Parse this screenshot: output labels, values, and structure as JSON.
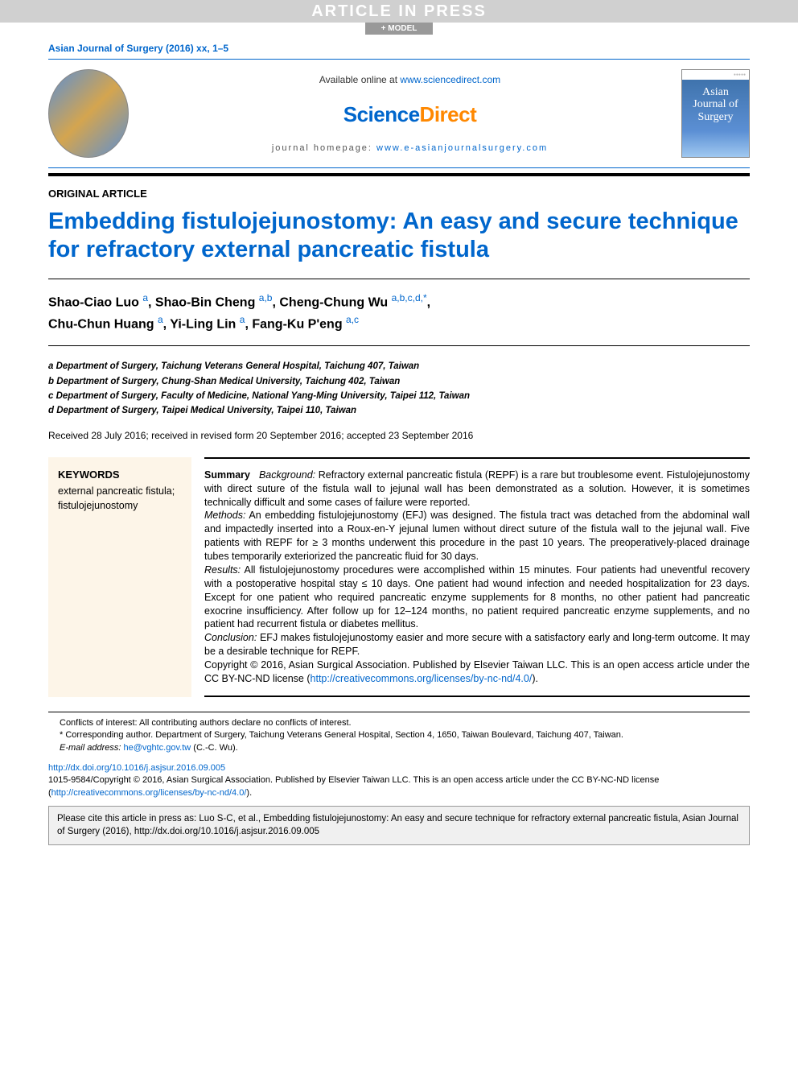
{
  "header_band": "ARTICLE IN PRESS",
  "model_tag": "+ MODEL",
  "journal_ref": "Asian Journal of Surgery (2016) xx, 1–5",
  "masthead": {
    "available_prefix": "Available online at ",
    "available_link": "www.sciencedirect.com",
    "brand_sci": "Science",
    "brand_direct": "Direct",
    "homepage_prefix": "journal homepage: ",
    "homepage_link": "www.e-asianjournalsurgery.com",
    "cover_line1": "Asian",
    "cover_line2": "Journal of",
    "cover_line3": "Surgery",
    "cover_badges": "●●●●●"
  },
  "section_label": "ORIGINAL ARTICLE",
  "title": "Embedding fistulojejunostomy: An easy and secure technique for refractory external pancreatic fistula",
  "authors": {
    "a1_name": "Shao-Ciao Luo ",
    "a1_sup": "a",
    "a2_name": "Shao-Bin Cheng ",
    "a2_sup": "a,b",
    "a3_name": "Cheng-Chung Wu ",
    "a3_sup": "a,b,c,d,",
    "a3_star": "*",
    "a4_name": "Chu-Chun Huang ",
    "a4_sup": "a",
    "a5_name": "Yi-Ling Lin ",
    "a5_sup": "a",
    "a6_name": "Fang-Ku P'eng ",
    "a6_sup": "a,c"
  },
  "affiliations": {
    "a": "a Department of Surgery, Taichung Veterans General Hospital, Taichung 407, Taiwan",
    "b": "b Department of Surgery, Chung-Shan Medical University, Taichung 402, Taiwan",
    "c": "c Department of Surgery, Faculty of Medicine, National Yang-Ming University, Taipei 112, Taiwan",
    "d": "d Department of Surgery, Taipei Medical University, Taipei 110, Taiwan"
  },
  "dates": "Received 28 July 2016; received in revised form 20 September 2016; accepted 23 September 2016",
  "keywords": {
    "head": "KEYWORDS",
    "body": "external pancreatic fistula; fistulojejunostomy"
  },
  "summary": {
    "label": "Summary",
    "bg_head": "Background:",
    "bg_body": " Refractory external pancreatic fistula (REPF) is a rare but troublesome event. Fistulojejunostomy with direct suture of the fistula wall to jejunal wall has been demonstrated as a solution. However, it is sometimes technically difficult and some cases of failure were reported.",
    "me_head": "Methods:",
    "me_body": " An embedding fistulojejunostomy (EFJ) was designed. The fistula tract was detached from the abdominal wall and impactedly inserted into a Roux-en-Y jejunal lumen without direct suture of the fistula wall to the jejunal wall. Five patients with REPF for ≥ 3 months underwent this procedure in the past 10 years. The preoperatively-placed drainage tubes temporarily exteriorized the pancreatic fluid for 30 days.",
    "re_head": "Results:",
    "re_body": " All fistulojejunostomy procedures were accomplished within 15 minutes. Four patients had uneventful recovery with a postoperative hospital stay ≤ 10 days. One patient had wound infection and needed hospitalization for 23 days. Except for one patient who required pancreatic enzyme supplements for 8 months, no other patient had pancreatic exocrine insufficiency. After follow up for 12–124 months, no patient required pancreatic enzyme supplements, and no patient had recurrent fistula or diabetes mellitus.",
    "co_head": "Conclusion:",
    "co_body": " EFJ makes fistulojejunostomy easier and more secure with a satisfactory early and long-term outcome. It may be a desirable technique for REPF.",
    "copy_pre": "Copyright © 2016, Asian Surgical Association. Published by Elsevier Taiwan LLC. This is an open access article under the CC BY-NC-ND license (",
    "copy_link": "http://creativecommons.org/licenses/by-nc-nd/4.0/",
    "copy_post": ")."
  },
  "footnotes": {
    "coi": "Conflicts of interest: All contributing authors declare no conflicts of interest.",
    "corr": "* Corresponding author. Department of Surgery, Taichung Veterans General Hospital, Section 4, 1650, Taiwan Boulevard, Taichung 407, Taiwan.",
    "email_label": "E-mail address: ",
    "email_link": "he@vghtc.gov.tw",
    "email_who": " (C.-C. Wu)."
  },
  "doi": {
    "link": "http://dx.doi.org/10.1016/j.asjsur.2016.09.005",
    "line2_pre": "1015-9584/Copyright © 2016, Asian Surgical Association. Published by Elsevier Taiwan LLC. This is an open access article under the CC BY-NC-ND license (",
    "line2_link": "http://creativecommons.org/licenses/by-nc-nd/4.0/",
    "line2_post": ")."
  },
  "cite_box": "Please cite this article in press as: Luo S-C, et al., Embedding fistulojejunostomy: An easy and secure technique for refractory external pancreatic fistula, Asian Journal of Surgery (2016), http://dx.doi.org/10.1016/j.asjsur.2016.09.005",
  "colors": {
    "link": "#0066cc",
    "orange": "#ff8800",
    "band_bg": "#d0d0d0",
    "keywords_bg": "#fdf5e8",
    "cover_top": "#3a6ea5"
  }
}
